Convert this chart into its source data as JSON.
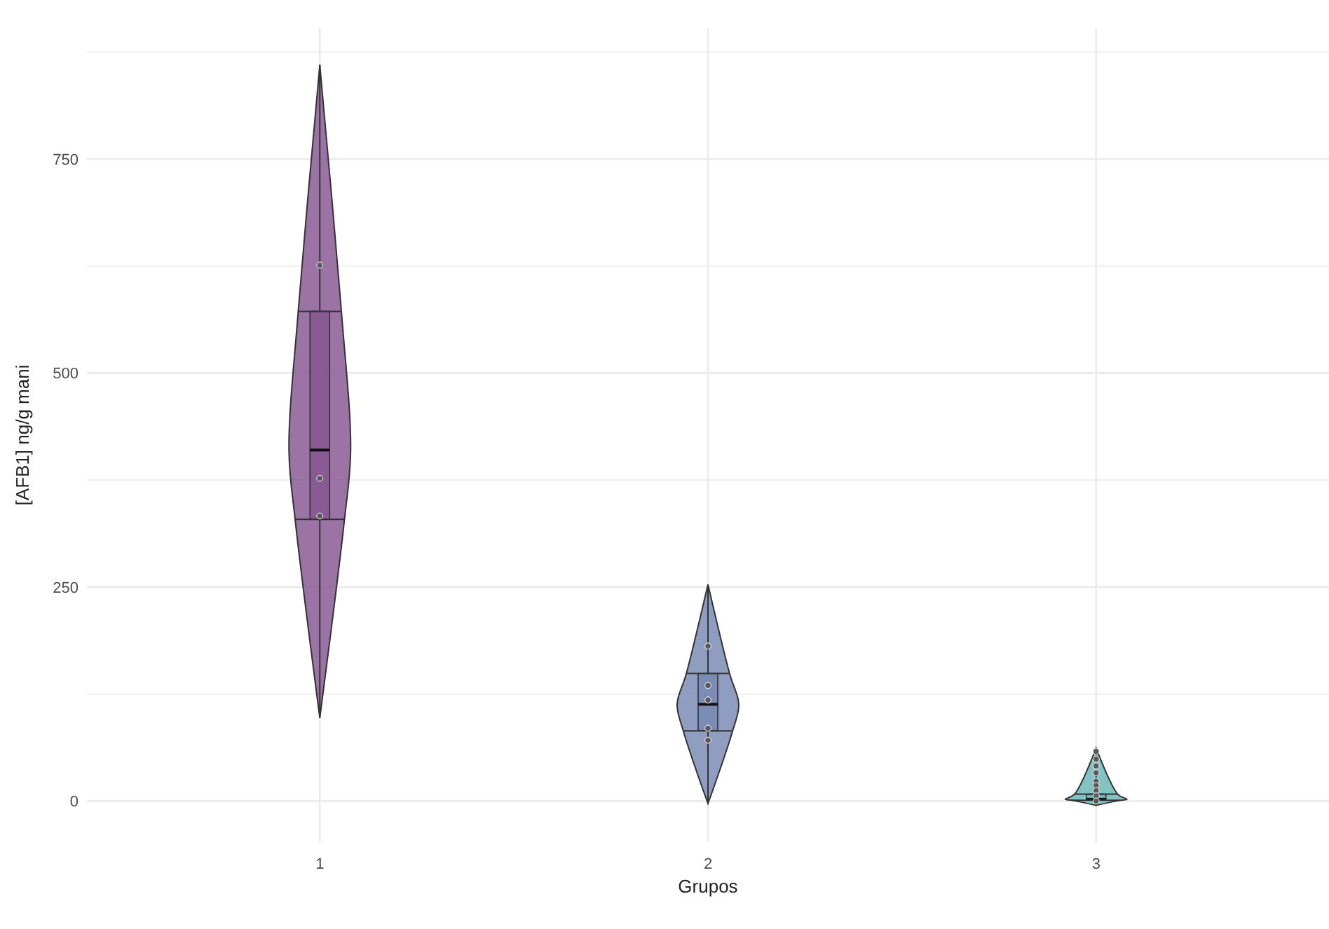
{
  "chart_data": {
    "type": "box",
    "xlabel": "Grupos",
    "ylabel": "[AFB1] ng/g mani",
    "categories": [
      "1",
      "2",
      "3"
    ],
    "colors": [
      "#8a5a94",
      "#7b8cb5",
      "#6fb8b8"
    ],
    "boxes": [
      {
        "low": 97,
        "q1": 329,
        "median": 410,
        "q3": 572,
        "high": 860
      },
      {
        "low": -3,
        "q1": 82,
        "median": 113,
        "q3": 149,
        "high": 253
      },
      {
        "low": -5,
        "q1": 1,
        "median": 2,
        "q3": 8,
        "high": 62
      }
    ],
    "series": [
      {
        "type": "scatter",
        "color": "#5a5a5a",
        "x": [
          "1",
          "1",
          "1",
          "2",
          "2",
          "2",
          "2",
          "2",
          "3",
          "3",
          "3",
          "3",
          "3",
          "3",
          "3",
          "3",
          "3"
        ],
        "values": [
          626,
          377,
          333,
          181,
          135,
          118,
          85,
          71,
          58,
          49,
          41,
          33,
          23,
          18,
          12,
          6,
          0
        ]
      }
    ],
    "ylim": [
      -48,
      903
    ],
    "yticks": [
      0,
      {
        "value": 125,
        "label": null
      },
      250,
      {
        "value": 375,
        "label": null
      },
      500,
      {
        "value": 625,
        "label": null
      },
      750,
      {
        "value": 875,
        "label": null
      }
    ],
    "grid": true
  }
}
